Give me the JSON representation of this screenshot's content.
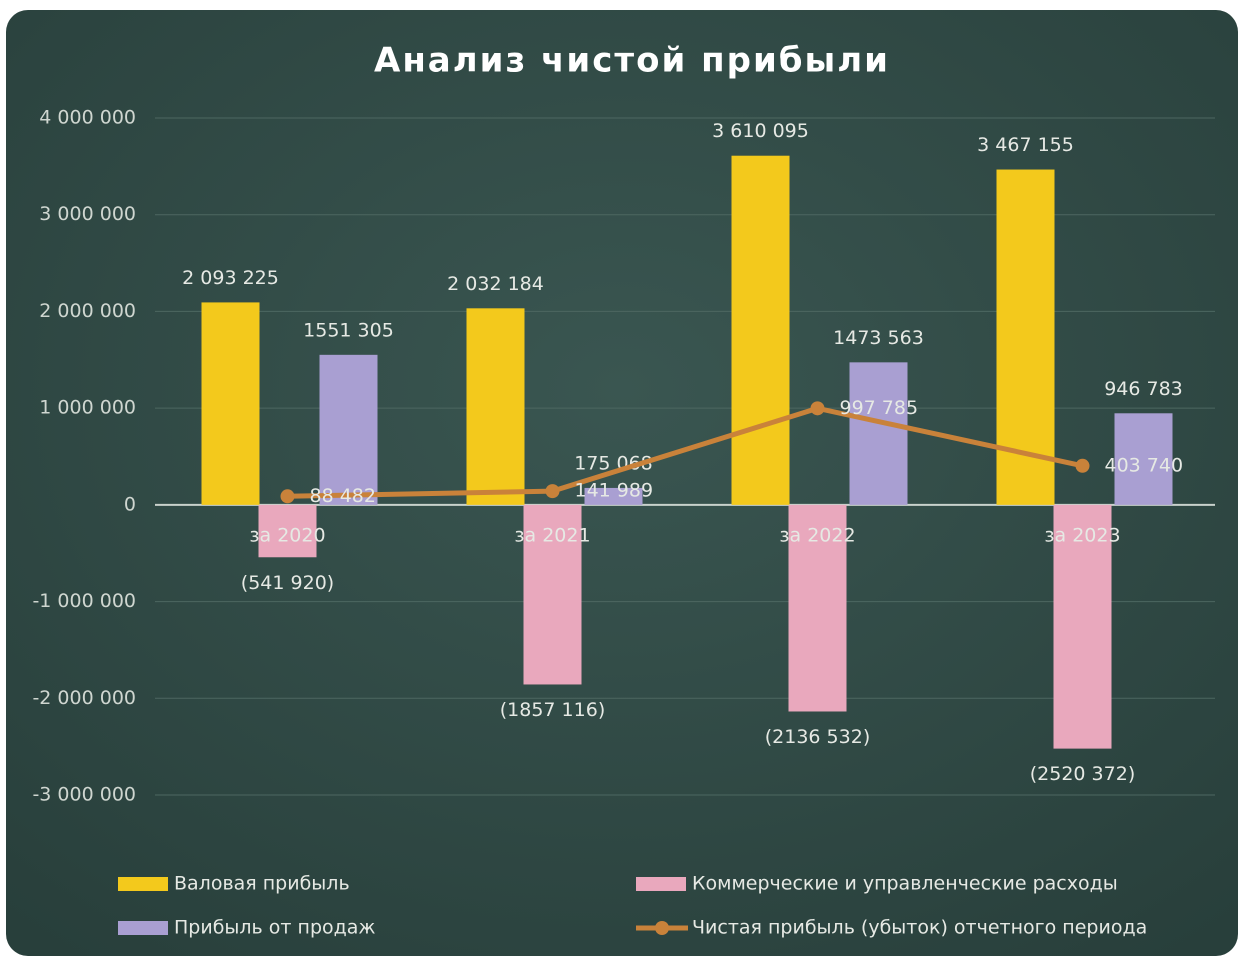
{
  "chart_data": {
    "type": "bar",
    "title": "Анализ чистой прибыли",
    "categories": [
      "за 2020",
      "за 2021",
      "за 2022",
      "за 2023"
    ],
    "series": [
      {
        "name": "Валовая прибыль",
        "color": "#f3c91c",
        "type": "bar",
        "values": [
          2093225,
          2032184,
          3610095,
          3467155
        ],
        "value_labels": [
          "2 093 225",
          "2 032 184",
          "3 610 095",
          "3 467 155"
        ]
      },
      {
        "name": "Коммерческие и управленческие расходы",
        "color": "#e9a8bd",
        "type": "bar",
        "values": [
          -541920,
          -1857116,
          -2136532,
          -2520372
        ],
        "value_labels": [
          "(541 920)",
          "(1857 116)",
          "(2136 532)",
          "(2520 372)"
        ]
      },
      {
        "name": "Прибыль от продаж",
        "color": "#a99fd2",
        "type": "bar",
        "values": [
          1551305,
          175068,
          1473563,
          946783
        ],
        "value_labels": [
          "1551 305",
          "175 068",
          "1473 563",
          "946 783"
        ]
      },
      {
        "name": "Чистая прибыль (убыток) отчетного периода",
        "color": "#c9823a",
        "type": "line",
        "values": [
          88482,
          141989,
          997785,
          403740
        ],
        "value_labels": [
          "88 482",
          "141 989",
          "997 785",
          "403 740"
        ]
      }
    ],
    "ylim": [
      -3000000,
      4000000
    ],
    "yticks": [
      {
        "value": -3000000,
        "label": "-3 000 000"
      },
      {
        "value": -2000000,
        "label": "-2 000 000"
      },
      {
        "value": -1000000,
        "label": "-1 000 000"
      },
      0,
      {
        "value": 1000000,
        "label": "1 000 000"
      },
      {
        "value": 2000000,
        "label": "2 000 000"
      },
      {
        "value": 3000000,
        "label": "3 000 000"
      },
      {
        "value": 4000000,
        "label": "4 000 000"
      }
    ],
    "grid": true,
    "legend": "bottom"
  }
}
